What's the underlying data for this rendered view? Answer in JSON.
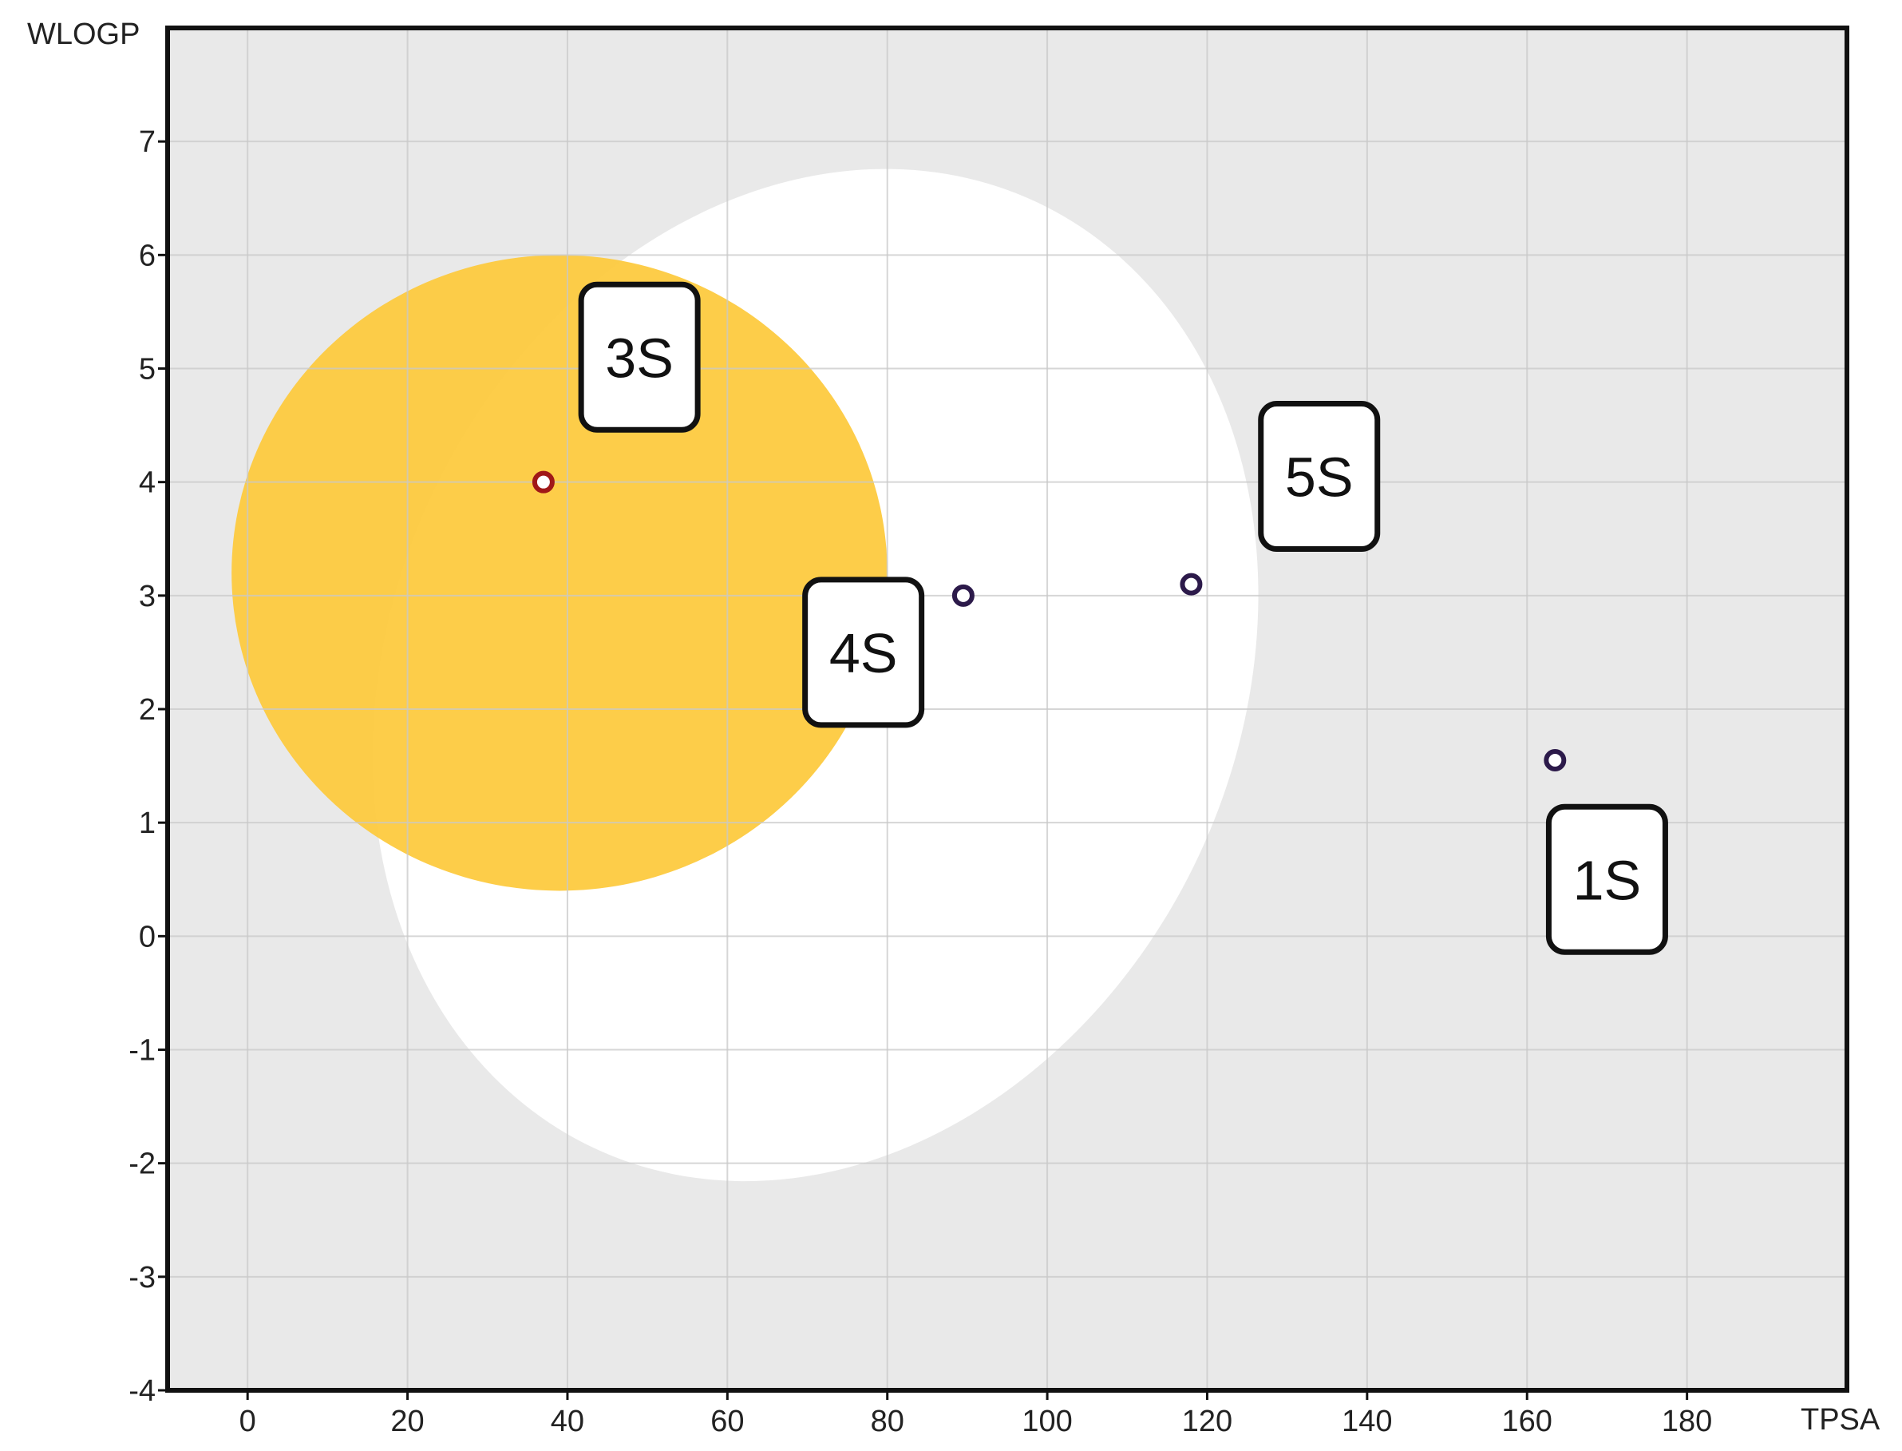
{
  "chart_data": {
    "type": "scatter",
    "xlabel": "TPSA",
    "ylabel": "WLOGP",
    "xlim": [
      -10,
      200
    ],
    "ylim": [
      -4,
      8
    ],
    "x_ticks": [
      0,
      20,
      40,
      60,
      80,
      100,
      120,
      140,
      160,
      180
    ],
    "y_ticks": [
      -4,
      -3,
      -2,
      -1,
      0,
      1,
      2,
      3,
      4,
      5,
      6,
      7
    ],
    "grid": true,
    "regions": [
      {
        "name": "white",
        "color": "#ffffff",
        "center": [
          71,
          2.3
        ],
        "radii": [
          53,
          4.6
        ],
        "rotation": 25
      },
      {
        "name": "yolk",
        "color": "#fdc93a",
        "center": [
          39,
          3.2
        ],
        "radii": [
          41,
          2.8
        ],
        "rotation": 0
      }
    ],
    "points": [
      {
        "label": "3S",
        "x": 37,
        "y": 4.0,
        "color": "#a01818",
        "label_at": [
          49,
          5.1
        ]
      },
      {
        "label": "4S",
        "x": 89.5,
        "y": 3.0,
        "color": "#2c1a4a",
        "label_at": [
          77,
          2.5
        ]
      },
      {
        "label": "5S",
        "x": 118,
        "y": 3.1,
        "color": "#2c1a4a",
        "label_at": [
          134,
          4.05
        ]
      },
      {
        "label": "1S",
        "x": 163.5,
        "y": 1.55,
        "color": "#2c1a4a",
        "label_at": [
          170,
          0.5
        ]
      }
    ],
    "colors": {
      "background": "#e9e9e9",
      "grid": "#c8c8c8",
      "frame": "#111111"
    }
  }
}
